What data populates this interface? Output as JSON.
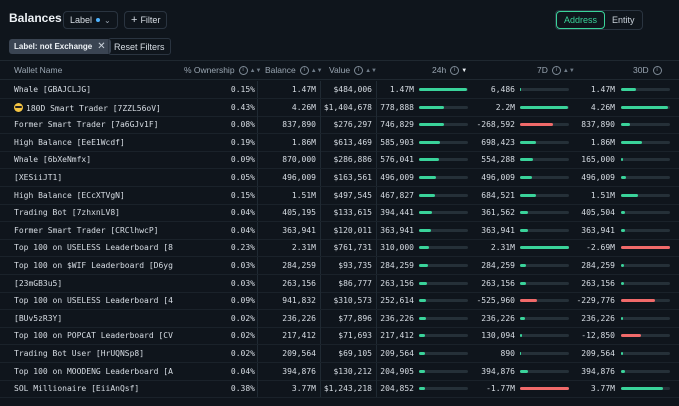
{
  "header": {
    "title": "Balances",
    "label_dropdown": "Label",
    "filter_button": "Filter",
    "toggle": [
      "Address",
      "Entity"
    ]
  },
  "filters": {
    "active_chip": "Label: not Exchange",
    "reset": "Reset Filters"
  },
  "columns": {
    "wallet": "Wallet Name",
    "ownership": "% Ownership",
    "balance": "Balance",
    "value": "Value",
    "d24": "24h",
    "d7": "7D",
    "d30": "30D"
  },
  "colors": {
    "positive": "#3ad39a",
    "negative": "#f06a6a",
    "accent": "#3ad39a"
  },
  "rows": [
    {
      "name": "Whale [GBAJCLJG]",
      "own": "0.15%",
      "bal": "1.47M",
      "val": "$484,006",
      "d24": "1.47M",
      "b24": 0.98,
      "d7": "6,486",
      "b7": 0.02,
      "d30": "1.47M",
      "b30": 0.3,
      "n24": false,
      "n7": false,
      "n30": false
    },
    {
      "name": "180D Smart Trader [7ZZL56oV]",
      "own": "0.43%",
      "bal": "4.26M",
      "val": "$1,404,678",
      "d24": "778,888",
      "b24": 0.52,
      "d7": "2.2M",
      "b7": 0.97,
      "d30": "4.26M",
      "b30": 0.95,
      "n24": false,
      "n7": false,
      "n30": false,
      "emoji": true
    },
    {
      "name": "Former Smart Trader [7a6GJv1F]",
      "own": "0.08%",
      "bal": "837,890",
      "val": "$276,297",
      "d24": "746,829",
      "b24": 0.5,
      "d7": "-268,592",
      "b7": 0.68,
      "d30": "837,890",
      "b30": 0.18,
      "n24": false,
      "n7": true,
      "n30": false
    },
    {
      "name": "High Balance [EeE1Wcdf]",
      "own": "0.19%",
      "bal": "1.86M",
      "val": "$613,469",
      "d24": "585,903",
      "b24": 0.42,
      "d7": "698,423",
      "b7": 0.33,
      "d30": "1.86M",
      "b30": 0.42,
      "n24": false,
      "n7": false,
      "n30": false
    },
    {
      "name": "Whale [6bXeNmfx]",
      "own": "0.09%",
      "bal": "870,000",
      "val": "$286,886",
      "d24": "576,041",
      "b24": 0.4,
      "d7": "554,288",
      "b7": 0.27,
      "d30": "165,000",
      "b30": 0.05,
      "n24": false,
      "n7": false,
      "n30": false
    },
    {
      "name": "[XESiiJT1]",
      "own": "0.05%",
      "bal": "496,009",
      "val": "$163,561",
      "d24": "496,009",
      "b24": 0.34,
      "d7": "496,009",
      "b7": 0.24,
      "d30": "496,009",
      "b30": 0.11,
      "n24": false,
      "n7": false,
      "n30": false
    },
    {
      "name": "High Balance [ECcXTVgN]",
      "own": "0.15%",
      "bal": "1.51M",
      "val": "$497,545",
      "d24": "467,827",
      "b24": 0.32,
      "d7": "684,521",
      "b7": 0.33,
      "d30": "1.51M",
      "b30": 0.34,
      "n24": false,
      "n7": false,
      "n30": false
    },
    {
      "name": "Trading Bot [7zhxnLV8]",
      "own": "0.04%",
      "bal": "405,195",
      "val": "$133,615",
      "d24": "394,441",
      "b24": 0.26,
      "d7": "361,562",
      "b7": 0.17,
      "d30": "405,504",
      "b30": 0.09,
      "n24": false,
      "n7": false,
      "n30": false
    },
    {
      "name": "Former Smart Trader [CRClhwcP]",
      "own": "0.04%",
      "bal": "363,941",
      "val": "$120,011",
      "d24": "363,941",
      "b24": 0.24,
      "d7": "363,941",
      "b7": 0.17,
      "d30": "363,941",
      "b30": 0.08,
      "n24": false,
      "n7": false,
      "n30": false
    },
    {
      "name": "Top 100 on USELESS Leaderboard [8...",
      "own": "0.23%",
      "bal": "2.31M",
      "val": "$761,731",
      "d24": "310,000",
      "b24": 0.2,
      "d7": "2.31M",
      "b7": 0.99,
      "d30": "-2.69M",
      "b30": 0.99,
      "n24": false,
      "n7": false,
      "n30": true
    },
    {
      "name": "Top 100 on $WIF Leaderboard [D6yg...",
      "own": "0.03%",
      "bal": "284,259",
      "val": "$93,735",
      "d24": "284,259",
      "b24": 0.18,
      "d7": "284,259",
      "b7": 0.13,
      "d30": "284,259",
      "b30": 0.06,
      "n24": false,
      "n7": false,
      "n30": false
    },
    {
      "name": "[23mGB3u5]",
      "own": "0.03%",
      "bal": "263,156",
      "val": "$86,777",
      "d24": "263,156",
      "b24": 0.16,
      "d7": "263,156",
      "b7": 0.12,
      "d30": "263,156",
      "b30": 0.06,
      "n24": false,
      "n7": false,
      "n30": false
    },
    {
      "name": "Top 100 on USELESS Leaderboard [4...",
      "own": "0.09%",
      "bal": "941,832",
      "val": "$310,573",
      "d24": "252,614",
      "b24": 0.15,
      "d7": "-525,960",
      "b7": 0.35,
      "d30": "-229,776",
      "b30": 0.7,
      "n24": false,
      "n7": true,
      "n30": true
    },
    {
      "name": "[BUv5zR3Y]",
      "own": "0.02%",
      "bal": "236,226",
      "val": "$77,896",
      "d24": "236,226",
      "b24": 0.14,
      "d7": "236,226",
      "b7": 0.11,
      "d30": "236,226",
      "b30": 0.05,
      "n24": false,
      "n7": false,
      "n30": false
    },
    {
      "name": "Top 100 on POPCAT Leaderboard [CV...",
      "own": "0.02%",
      "bal": "217,412",
      "val": "$71,693",
      "d24": "217,412",
      "b24": 0.13,
      "d7": "130,094",
      "b7": 0.05,
      "d30": "-12,850",
      "b30": 0.4,
      "n24": false,
      "n7": false,
      "n30": true
    },
    {
      "name": "Trading Bot User [HrUQNSp8]",
      "own": "0.02%",
      "bal": "209,564",
      "val": "$69,105",
      "d24": "209,564",
      "b24": 0.12,
      "d7": "890",
      "b7": 0.01,
      "d30": "209,564",
      "b30": 0.05,
      "n24": false,
      "n7": false,
      "n30": false
    },
    {
      "name": "Top 100 on MOODENG Leaderboard [A...",
      "own": "0.04%",
      "bal": "394,876",
      "val": "$130,212",
      "d24": "204,905",
      "b24": 0.12,
      "d7": "394,876",
      "b7": 0.17,
      "d30": "394,876",
      "b30": 0.09,
      "n24": false,
      "n7": false,
      "n30": false
    },
    {
      "name": "SOL Millionaire [EiiAnQsf]",
      "own": "0.38%",
      "bal": "3.77M",
      "val": "$1,243,218",
      "d24": "204,852",
      "b24": 0.12,
      "d7": "-1.77M",
      "b7": 0.99,
      "d30": "3.77M",
      "b30": 0.85,
      "n24": false,
      "n7": true,
      "n30": false
    }
  ]
}
